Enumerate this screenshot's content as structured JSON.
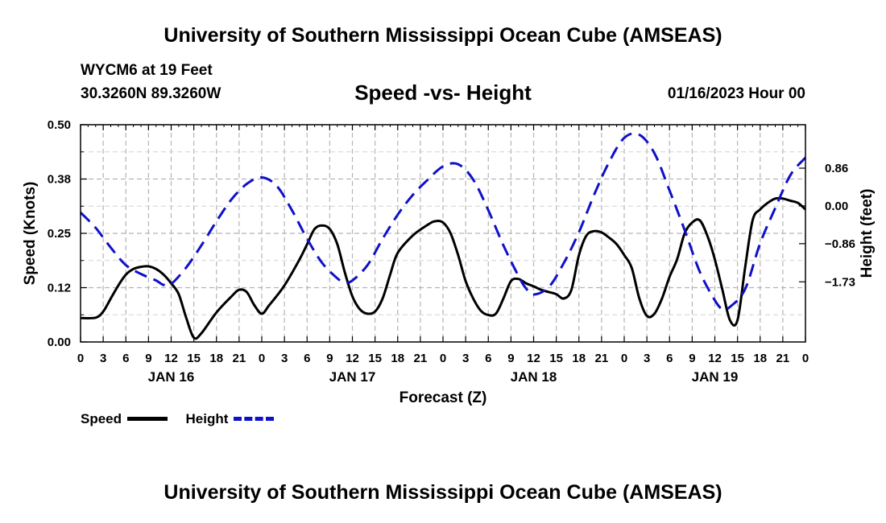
{
  "header": {
    "title": "University of Southern Mississippi Ocean Cube (AMSEAS)",
    "station": "WYCM6 at 19 Feet",
    "coords": "30.3260N  89.3260W",
    "subtitle": "Speed -vs- Height",
    "date": "01/16/2023 Hour 00"
  },
  "footer": {
    "title": "University of Southern Mississippi Ocean Cube (AMSEAS)"
  },
  "legend": {
    "speed_label": "Speed",
    "height_label": "Height"
  },
  "colors": {
    "speed": "#000000",
    "height": "#1010c8",
    "grid": "#b4b4b4"
  },
  "chart_data": {
    "type": "line",
    "title": "Speed -vs- Height",
    "xlabel": "Forecast (Z)",
    "ylabel_left": "Speed (Knots)",
    "ylabel_right": "Height (feet)",
    "x_unit": "hours since 01/16/2023 00Z",
    "xlim": [
      0,
      96
    ],
    "x_ticks": [
      {
        "x": 0,
        "label": "0"
      },
      {
        "x": 3,
        "label": "3"
      },
      {
        "x": 6,
        "label": "6"
      },
      {
        "x": 9,
        "label": "9"
      },
      {
        "x": 12,
        "label": "12"
      },
      {
        "x": 15,
        "label": "15"
      },
      {
        "x": 18,
        "label": "18"
      },
      {
        "x": 21,
        "label": "21"
      },
      {
        "x": 24,
        "label": "0"
      },
      {
        "x": 27,
        "label": "3"
      },
      {
        "x": 30,
        "label": "6"
      },
      {
        "x": 33,
        "label": "9"
      },
      {
        "x": 36,
        "label": "12"
      },
      {
        "x": 39,
        "label": "15"
      },
      {
        "x": 42,
        "label": "18"
      },
      {
        "x": 45,
        "label": "21"
      },
      {
        "x": 48,
        "label": "0"
      },
      {
        "x": 51,
        "label": "3"
      },
      {
        "x": 54,
        "label": "6"
      },
      {
        "x": 57,
        "label": "9"
      },
      {
        "x": 60,
        "label": "12"
      },
      {
        "x": 63,
        "label": "15"
      },
      {
        "x": 66,
        "label": "18"
      },
      {
        "x": 69,
        "label": "21"
      },
      {
        "x": 72,
        "label": "0"
      },
      {
        "x": 75,
        "label": "3"
      },
      {
        "x": 78,
        "label": "6"
      },
      {
        "x": 81,
        "label": "9"
      },
      {
        "x": 84,
        "label": "12"
      },
      {
        "x": 87,
        "label": "15"
      },
      {
        "x": 90,
        "label": "18"
      },
      {
        "x": 93,
        "label": "21"
      },
      {
        "x": 96,
        "label": "0"
      }
    ],
    "day_labels": [
      {
        "x": 12,
        "label": "JAN 16"
      },
      {
        "x": 36,
        "label": "JAN 17"
      },
      {
        "x": 60,
        "label": "JAN 18"
      },
      {
        "x": 84,
        "label": "JAN 19"
      }
    ],
    "ylim_left": [
      0,
      0.5
    ],
    "y_ticks_left": [
      {
        "v": 0.0,
        "label": "0.00"
      },
      {
        "v": 0.125,
        "label": "0.12"
      },
      {
        "v": 0.25,
        "label": "0.25"
      },
      {
        "v": 0.375,
        "label": "0.38"
      },
      {
        "v": 0.5,
        "label": "0.50"
      }
    ],
    "ylim_right": [
      -3.1,
      1.85
    ],
    "y_ticks_right": [
      {
        "v": 0.86,
        "label": "0.86"
      },
      {
        "v": 0.0,
        "label": "0.00"
      },
      {
        "v": -0.86,
        "label": "−0.86"
      },
      {
        "v": -1.73,
        "label": "−1.73"
      }
    ],
    "series": [
      {
        "name": "Speed",
        "axis": "left",
        "style": "solid",
        "x": [
          0,
          2,
          3,
          4,
          5,
          6,
          7,
          8,
          9,
          10,
          11,
          12,
          13,
          14,
          15,
          16,
          18,
          20,
          21,
          22,
          23,
          24,
          25,
          27,
          29,
          30,
          31,
          32,
          33,
          34,
          35,
          36,
          37,
          38,
          39,
          40,
          41,
          42,
          44,
          46,
          47,
          48,
          49,
          50,
          51,
          52,
          53,
          54,
          55,
          56,
          57,
          58,
          59,
          60,
          61,
          62,
          63,
          64,
          65,
          66,
          67,
          68,
          69,
          70,
          71,
          72,
          73,
          74,
          75,
          76,
          77,
          78,
          79,
          80,
          81,
          82,
          83,
          84,
          85,
          86,
          87,
          88,
          89,
          90,
          91,
          92,
          93,
          94,
          95,
          96
        ],
        "values": [
          0.055,
          0.056,
          0.07,
          0.1,
          0.13,
          0.155,
          0.168,
          0.173,
          0.174,
          0.168,
          0.155,
          0.135,
          0.11,
          0.055,
          0.01,
          0.02,
          0.068,
          0.105,
          0.12,
          0.115,
          0.085,
          0.065,
          0.085,
          0.13,
          0.19,
          0.225,
          0.26,
          0.268,
          0.26,
          0.225,
          0.16,
          0.105,
          0.075,
          0.065,
          0.07,
          0.1,
          0.155,
          0.205,
          0.245,
          0.27,
          0.278,
          0.275,
          0.25,
          0.2,
          0.14,
          0.1,
          0.072,
          0.062,
          0.065,
          0.1,
          0.14,
          0.145,
          0.135,
          0.128,
          0.12,
          0.115,
          0.11,
          0.1,
          0.12,
          0.2,
          0.245,
          0.255,
          0.252,
          0.24,
          0.225,
          0.2,
          0.17,
          0.1,
          0.06,
          0.065,
          0.1,
          0.15,
          0.19,
          0.25,
          0.275,
          0.28,
          0.245,
          0.19,
          0.12,
          0.05,
          0.05,
          0.17,
          0.28,
          0.305,
          0.32,
          0.33,
          0.33,
          0.325,
          0.32,
          0.305
        ]
      },
      {
        "name": "Height",
        "axis": "right",
        "style": "dashed",
        "x": [
          0,
          2,
          4,
          6,
          8,
          10,
          11,
          12,
          14,
          16,
          18,
          20,
          22,
          24,
          26,
          28,
          30,
          32,
          34,
          35,
          36,
          38,
          40,
          42,
          44,
          46,
          48,
          50,
          52,
          54,
          56,
          58,
          59,
          60,
          62,
          64,
          66,
          68,
          70,
          72,
          74,
          76,
          78,
          80,
          82,
          84,
          85,
          86,
          88,
          90,
          92,
          94,
          96
        ],
        "values": [
          -0.15,
          -0.5,
          -0.95,
          -1.35,
          -1.55,
          -1.7,
          -1.8,
          -1.78,
          -1.4,
          -0.9,
          -0.35,
          0.15,
          0.5,
          0.65,
          0.45,
          -0.1,
          -0.75,
          -1.3,
          -1.65,
          -1.75,
          -1.7,
          -1.35,
          -0.75,
          -0.2,
          0.25,
          0.6,
          0.9,
          0.95,
          0.6,
          -0.1,
          -0.9,
          -1.6,
          -1.88,
          -2.02,
          -1.85,
          -1.3,
          -0.6,
          0.25,
          1.0,
          1.55,
          1.62,
          1.2,
          0.35,
          -0.55,
          -1.5,
          -2.15,
          -2.35,
          -2.3,
          -1.9,
          -0.85,
          -0.05,
          0.7,
          1.1
        ]
      }
    ]
  }
}
